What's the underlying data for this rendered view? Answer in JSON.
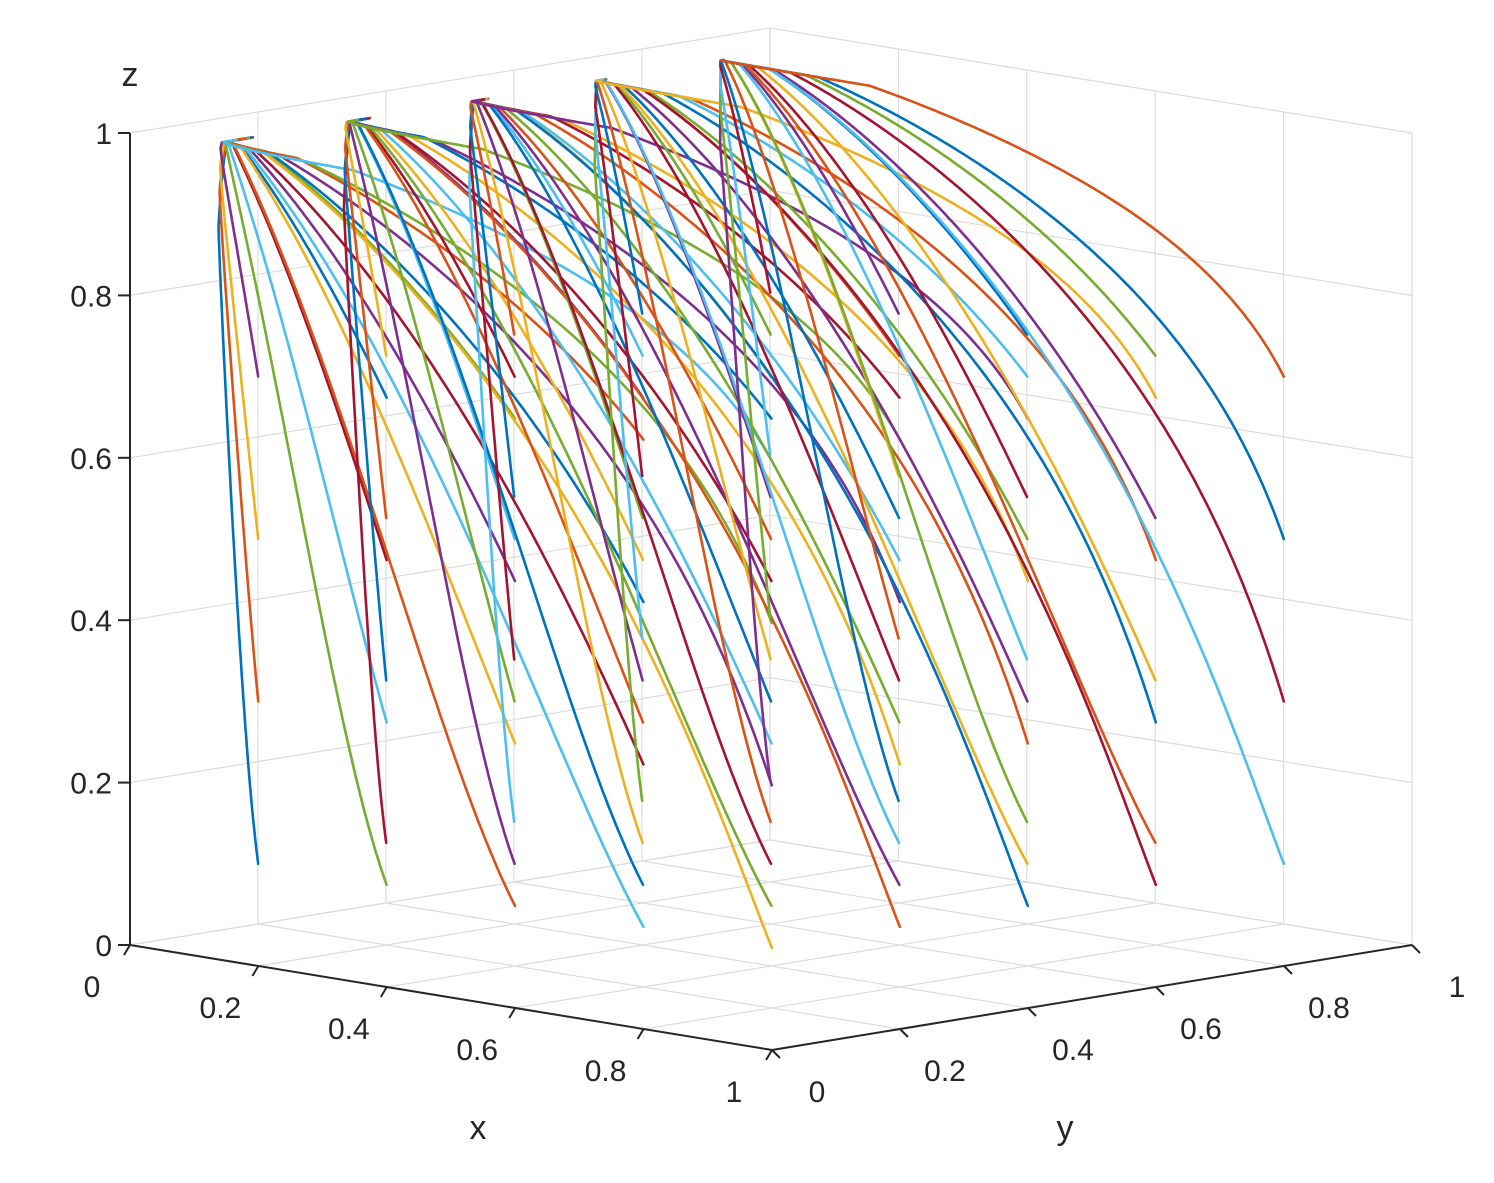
{
  "chart_data": {
    "type": "line",
    "title": "",
    "xlabel": "x",
    "ylabel": "y",
    "zlabel": "z",
    "xlim": [
      0,
      1
    ],
    "ylim": [
      0,
      1
    ],
    "zlim": [
      0,
      1
    ],
    "grid": true,
    "view": "3d",
    "x_ticks": [
      "0",
      "0.2",
      "0.4",
      "0.6",
      "0.8",
      "1"
    ],
    "y_ticks": [
      "0",
      "0.2",
      "0.4",
      "0.6",
      "0.8",
      "1"
    ],
    "z_ticks": [
      "0",
      "0.2",
      "0.4",
      "0.6",
      "0.8",
      "1"
    ],
    "colors": [
      "#0072BD",
      "#D95319",
      "#EDB120",
      "#7E2F8E",
      "#77AC30",
      "#4DBEEE",
      "#A2142F"
    ],
    "series_description": "evolutionary trajectories from a grid of initial points (x, y, z); all converge toward z ≈ 0.97 with x → ~0.1",
    "trajectories": [
      {
        "x0": 0.1,
        "y0": 0.1,
        "z0": 0.1
      },
      {
        "x0": 0.1,
        "y0": 0.1,
        "z0": 0.3
      },
      {
        "x0": 0.1,
        "y0": 0.1,
        "z0": 0.5
      },
      {
        "x0": 0.1,
        "y0": 0.1,
        "z0": 0.7
      },
      {
        "x0": 0.3,
        "y0": 0.1,
        "z0": 0.1
      },
      {
        "x0": 0.3,
        "y0": 0.1,
        "z0": 0.3
      },
      {
        "x0": 0.3,
        "y0": 0.1,
        "z0": 0.5
      },
      {
        "x0": 0.3,
        "y0": 0.1,
        "z0": 0.7
      },
      {
        "x0": 0.5,
        "y0": 0.1,
        "z0": 0.1
      },
      {
        "x0": 0.5,
        "y0": 0.1,
        "z0": 0.3
      },
      {
        "x0": 0.5,
        "y0": 0.1,
        "z0": 0.5
      },
      {
        "x0": 0.5,
        "y0": 0.1,
        "z0": 0.7
      },
      {
        "x0": 0.7,
        "y0": 0.1,
        "z0": 0.1
      },
      {
        "x0": 0.7,
        "y0": 0.1,
        "z0": 0.3
      },
      {
        "x0": 0.7,
        "y0": 0.1,
        "z0": 0.5
      },
      {
        "x0": 0.7,
        "y0": 0.1,
        "z0": 0.7
      },
      {
        "x0": 0.9,
        "y0": 0.1,
        "z0": 0.1
      },
      {
        "x0": 0.9,
        "y0": 0.1,
        "z0": 0.3
      },
      {
        "x0": 0.9,
        "y0": 0.1,
        "z0": 0.5
      },
      {
        "x0": 0.9,
        "y0": 0.1,
        "z0": 0.7
      },
      {
        "x0": 0.1,
        "y0": 0.3,
        "z0": 0.1
      },
      {
        "x0": 0.1,
        "y0": 0.3,
        "z0": 0.3
      },
      {
        "x0": 0.1,
        "y0": 0.3,
        "z0": 0.5
      },
      {
        "x0": 0.1,
        "y0": 0.3,
        "z0": 0.7
      },
      {
        "x0": 0.3,
        "y0": 0.3,
        "z0": 0.1
      },
      {
        "x0": 0.3,
        "y0": 0.3,
        "z0": 0.3
      },
      {
        "x0": 0.3,
        "y0": 0.3,
        "z0": 0.5
      },
      {
        "x0": 0.3,
        "y0": 0.3,
        "z0": 0.7
      },
      {
        "x0": 0.5,
        "y0": 0.3,
        "z0": 0.1
      },
      {
        "x0": 0.5,
        "y0": 0.3,
        "z0": 0.3
      },
      {
        "x0": 0.5,
        "y0": 0.3,
        "z0": 0.5
      },
      {
        "x0": 0.5,
        "y0": 0.3,
        "z0": 0.7
      },
      {
        "x0": 0.7,
        "y0": 0.3,
        "z0": 0.1
      },
      {
        "x0": 0.7,
        "y0": 0.3,
        "z0": 0.3
      },
      {
        "x0": 0.7,
        "y0": 0.3,
        "z0": 0.5
      },
      {
        "x0": 0.7,
        "y0": 0.3,
        "z0": 0.7
      },
      {
        "x0": 0.9,
        "y0": 0.3,
        "z0": 0.1
      },
      {
        "x0": 0.9,
        "y0": 0.3,
        "z0": 0.3
      },
      {
        "x0": 0.9,
        "y0": 0.3,
        "z0": 0.5
      },
      {
        "x0": 0.9,
        "y0": 0.3,
        "z0": 0.7
      },
      {
        "x0": 0.1,
        "y0": 0.5,
        "z0": 0.1
      },
      {
        "x0": 0.1,
        "y0": 0.5,
        "z0": 0.3
      },
      {
        "x0": 0.1,
        "y0": 0.5,
        "z0": 0.5
      },
      {
        "x0": 0.1,
        "y0": 0.5,
        "z0": 0.7
      },
      {
        "x0": 0.3,
        "y0": 0.5,
        "z0": 0.1
      },
      {
        "x0": 0.3,
        "y0": 0.5,
        "z0": 0.3
      },
      {
        "x0": 0.3,
        "y0": 0.5,
        "z0": 0.5
      },
      {
        "x0": 0.3,
        "y0": 0.5,
        "z0": 0.7
      },
      {
        "x0": 0.5,
        "y0": 0.5,
        "z0": 0.1
      },
      {
        "x0": 0.5,
        "y0": 0.5,
        "z0": 0.3
      },
      {
        "x0": 0.5,
        "y0": 0.5,
        "z0": 0.5
      },
      {
        "x0": 0.5,
        "y0": 0.5,
        "z0": 0.7
      },
      {
        "x0": 0.7,
        "y0": 0.5,
        "z0": 0.1
      },
      {
        "x0": 0.7,
        "y0": 0.5,
        "z0": 0.3
      },
      {
        "x0": 0.7,
        "y0": 0.5,
        "z0": 0.5
      },
      {
        "x0": 0.7,
        "y0": 0.5,
        "z0": 0.7
      },
      {
        "x0": 0.9,
        "y0": 0.5,
        "z0": 0.1
      },
      {
        "x0": 0.9,
        "y0": 0.5,
        "z0": 0.3
      },
      {
        "x0": 0.9,
        "y0": 0.5,
        "z0": 0.5
      },
      {
        "x0": 0.9,
        "y0": 0.5,
        "z0": 0.7
      },
      {
        "x0": 0.1,
        "y0": 0.7,
        "z0": 0.1
      },
      {
        "x0": 0.1,
        "y0": 0.7,
        "z0": 0.3
      },
      {
        "x0": 0.1,
        "y0": 0.7,
        "z0": 0.5
      },
      {
        "x0": 0.1,
        "y0": 0.7,
        "z0": 0.7
      },
      {
        "x0": 0.3,
        "y0": 0.7,
        "z0": 0.1
      },
      {
        "x0": 0.3,
        "y0": 0.7,
        "z0": 0.3
      },
      {
        "x0": 0.3,
        "y0": 0.7,
        "z0": 0.5
      },
      {
        "x0": 0.3,
        "y0": 0.7,
        "z0": 0.7
      },
      {
        "x0": 0.5,
        "y0": 0.7,
        "z0": 0.1
      },
      {
        "x0": 0.5,
        "y0": 0.7,
        "z0": 0.3
      },
      {
        "x0": 0.5,
        "y0": 0.7,
        "z0": 0.5
      },
      {
        "x0": 0.5,
        "y0": 0.7,
        "z0": 0.7
      },
      {
        "x0": 0.7,
        "y0": 0.7,
        "z0": 0.1
      },
      {
        "x0": 0.7,
        "y0": 0.7,
        "z0": 0.3
      },
      {
        "x0": 0.7,
        "y0": 0.7,
        "z0": 0.5
      },
      {
        "x0": 0.7,
        "y0": 0.7,
        "z0": 0.7
      },
      {
        "x0": 0.9,
        "y0": 0.7,
        "z0": 0.1
      },
      {
        "x0": 0.9,
        "y0": 0.7,
        "z0": 0.3
      },
      {
        "x0": 0.9,
        "y0": 0.7,
        "z0": 0.5
      },
      {
        "x0": 0.9,
        "y0": 0.7,
        "z0": 0.7
      },
      {
        "x0": 0.1,
        "y0": 0.9,
        "z0": 0.1
      },
      {
        "x0": 0.1,
        "y0": 0.9,
        "z0": 0.3
      },
      {
        "x0": 0.1,
        "y0": 0.9,
        "z0": 0.5
      },
      {
        "x0": 0.1,
        "y0": 0.9,
        "z0": 0.7
      },
      {
        "x0": 0.3,
        "y0": 0.9,
        "z0": 0.1
      },
      {
        "x0": 0.3,
        "y0": 0.9,
        "z0": 0.3
      },
      {
        "x0": 0.3,
        "y0": 0.9,
        "z0": 0.5
      },
      {
        "x0": 0.3,
        "y0": 0.9,
        "z0": 0.7
      },
      {
        "x0": 0.5,
        "y0": 0.9,
        "z0": 0.1
      },
      {
        "x0": 0.5,
        "y0": 0.9,
        "z0": 0.3
      },
      {
        "x0": 0.5,
        "y0": 0.9,
        "z0": 0.5
      },
      {
        "x0": 0.5,
        "y0": 0.9,
        "z0": 0.7
      },
      {
        "x0": 0.7,
        "y0": 0.9,
        "z0": 0.1
      },
      {
        "x0": 0.7,
        "y0": 0.9,
        "z0": 0.3
      },
      {
        "x0": 0.7,
        "y0": 0.9,
        "z0": 0.5
      },
      {
        "x0": 0.7,
        "y0": 0.9,
        "z0": 0.7
      },
      {
        "x0": 0.9,
        "y0": 0.9,
        "z0": 0.1
      },
      {
        "x0": 0.9,
        "y0": 0.9,
        "z0": 0.3
      },
      {
        "x0": 0.9,
        "y0": 0.9,
        "z0": 0.5
      },
      {
        "x0": 0.9,
        "y0": 0.9,
        "z0": 0.7
      }
    ]
  }
}
